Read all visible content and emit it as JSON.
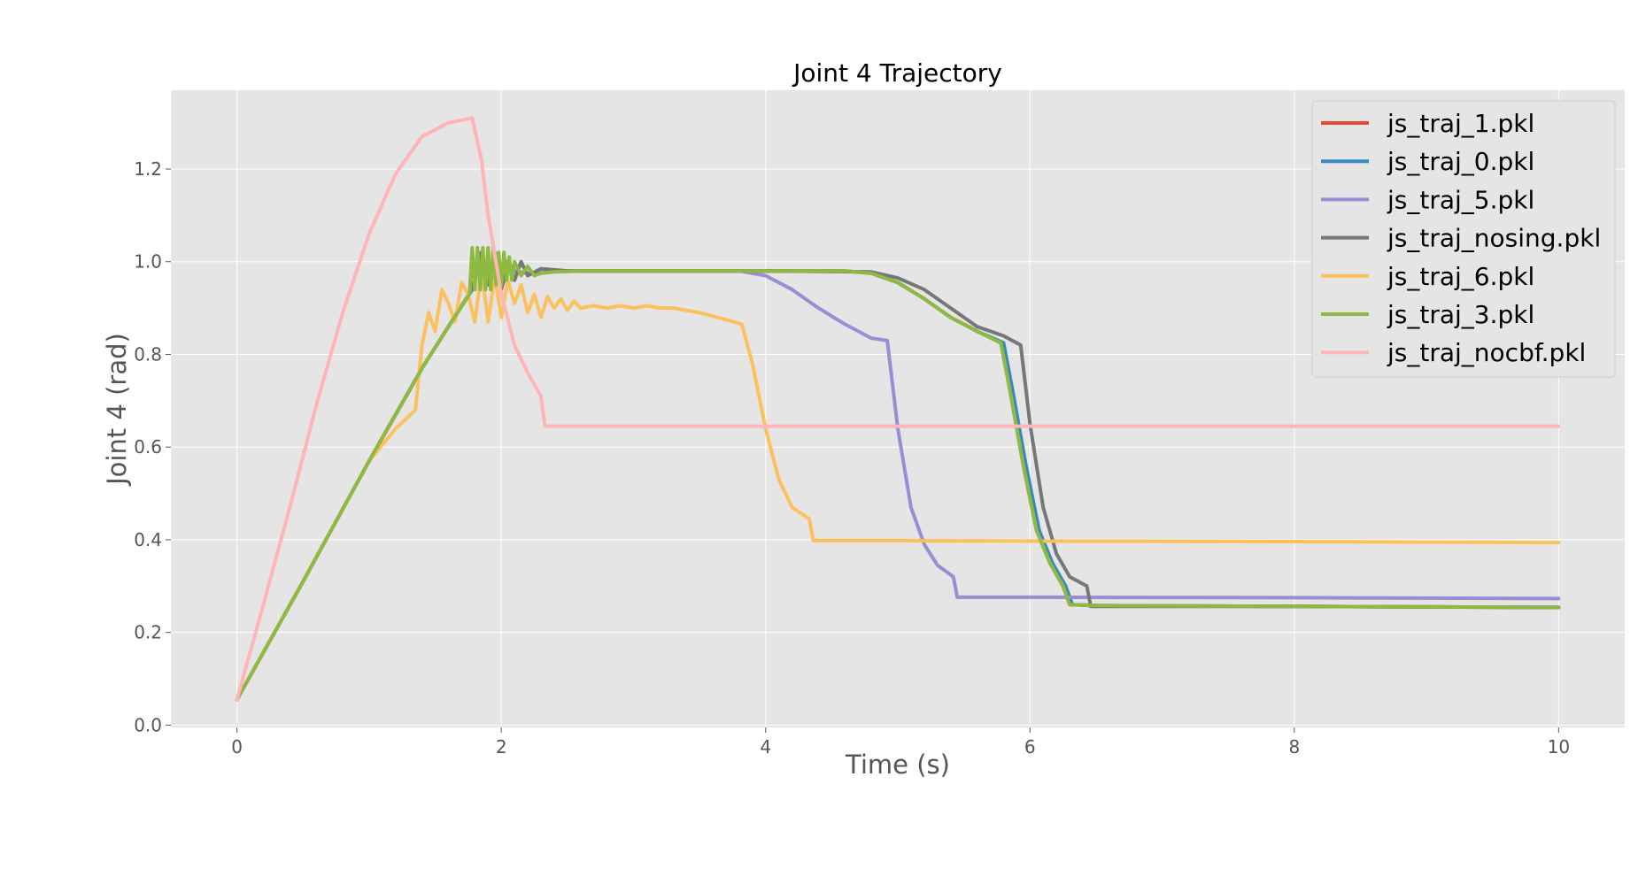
{
  "chart_data": {
    "type": "line",
    "title": "Joint 4 Trajectory",
    "xlabel": "Time (s)",
    "ylabel": "Joint 4 (rad)",
    "xlim": [
      -0.5,
      10.5
    ],
    "ylim": [
      -0.005,
      1.37
    ],
    "xticks": [
      0,
      2,
      4,
      6,
      8,
      10
    ],
    "xtick_labels": [
      "0",
      "2",
      "4",
      "6",
      "8",
      "10"
    ],
    "yticks": [
      0.0,
      0.2,
      0.4,
      0.6,
      0.8,
      1.0,
      1.2
    ],
    "ytick_labels": [
      "0.0",
      "0.2",
      "0.4",
      "0.6",
      "0.8",
      "1.0",
      "1.2"
    ],
    "grid": true,
    "legend_position": "top-right",
    "background": "#e5e5e5",
    "series": [
      {
        "name": "js_traj_1.pkl",
        "color": "#e24a33",
        "x": [
          0,
          0.5,
          1.0,
          1.2,
          1.4,
          1.6,
          1.78,
          1.85,
          1.9,
          1.95,
          2.0,
          2.05,
          2.1,
          2.2,
          2.4,
          3.0,
          4.0,
          4.6,
          4.8,
          5.0,
          5.2,
          5.4,
          5.6,
          5.78,
          5.85,
          5.95,
          6.05,
          6.15,
          6.25,
          6.3,
          6.5,
          8.0,
          10.0
        ],
        "y": [
          0.055,
          0.31,
          0.57,
          0.67,
          0.77,
          0.86,
          0.94,
          1.02,
          0.96,
          1.02,
          0.97,
          1.0,
          0.98,
          0.975,
          0.98,
          0.98,
          0.98,
          0.98,
          0.975,
          0.955,
          0.92,
          0.88,
          0.85,
          0.825,
          0.72,
          0.56,
          0.42,
          0.35,
          0.3,
          0.26,
          0.258,
          0.256,
          0.254
        ]
      },
      {
        "name": "js_traj_0.pkl",
        "color": "#348abd",
        "x": [
          0,
          0.5,
          1.0,
          1.2,
          1.4,
          1.6,
          1.78,
          1.85,
          1.9,
          1.95,
          2.0,
          2.05,
          2.1,
          2.2,
          2.4,
          3.0,
          4.0,
          4.6,
          4.8,
          5.0,
          5.2,
          5.4,
          5.6,
          5.8,
          5.87,
          5.97,
          6.07,
          6.17,
          6.27,
          6.32,
          6.5,
          8.0,
          10.0
        ],
        "y": [
          0.055,
          0.31,
          0.57,
          0.67,
          0.77,
          0.86,
          0.94,
          1.02,
          0.96,
          1.02,
          0.97,
          1.0,
          0.98,
          0.975,
          0.98,
          0.98,
          0.98,
          0.98,
          0.975,
          0.955,
          0.92,
          0.88,
          0.85,
          0.825,
          0.72,
          0.56,
          0.42,
          0.35,
          0.3,
          0.26,
          0.258,
          0.256,
          0.254
        ]
      },
      {
        "name": "js_traj_5.pkl",
        "color": "#988ed5",
        "x": [
          0,
          0.5,
          1.0,
          1.2,
          1.4,
          1.6,
          1.78,
          1.85,
          1.9,
          1.95,
          2.0,
          2.05,
          2.1,
          2.2,
          2.4,
          3.0,
          3.8,
          4.0,
          4.2,
          4.4,
          4.6,
          4.8,
          4.92,
          5.0,
          5.1,
          5.2,
          5.3,
          5.42,
          5.45,
          6.0,
          8.0,
          10.0
        ],
        "y": [
          0.055,
          0.31,
          0.57,
          0.67,
          0.77,
          0.86,
          0.94,
          1.02,
          0.96,
          1.02,
          0.97,
          1.0,
          0.98,
          0.975,
          0.98,
          0.98,
          0.98,
          0.97,
          0.94,
          0.9,
          0.865,
          0.835,
          0.83,
          0.64,
          0.47,
          0.39,
          0.345,
          0.32,
          0.276,
          0.276,
          0.275,
          0.273
        ]
      },
      {
        "name": "js_traj_nosing.pkl",
        "color": "#777777",
        "x": [
          0,
          0.5,
          1.0,
          1.2,
          1.4,
          1.6,
          1.78,
          1.85,
          1.9,
          1.95,
          2.0,
          2.05,
          2.1,
          2.15,
          2.2,
          2.3,
          2.5,
          3.0,
          4.0,
          4.8,
          5.0,
          5.2,
          5.4,
          5.6,
          5.8,
          5.93,
          6.0,
          6.1,
          6.2,
          6.3,
          6.43,
          6.46,
          7.0,
          8.0,
          10.0
        ],
        "y": [
          0.055,
          0.31,
          0.57,
          0.67,
          0.77,
          0.86,
          0.94,
          1.02,
          0.95,
          1.02,
          0.94,
          0.99,
          0.96,
          1.0,
          0.97,
          0.985,
          0.98,
          0.98,
          0.98,
          0.978,
          0.965,
          0.94,
          0.9,
          0.86,
          0.84,
          0.82,
          0.65,
          0.47,
          0.37,
          0.32,
          0.3,
          0.256,
          0.256,
          0.256,
          0.254
        ]
      },
      {
        "name": "js_traj_6.pkl",
        "color": "#fbc15e",
        "x": [
          0,
          0.5,
          1.0,
          1.2,
          1.35,
          1.4,
          1.45,
          1.5,
          1.55,
          1.6,
          1.65,
          1.7,
          1.75,
          1.8,
          1.85,
          1.9,
          1.95,
          2.0,
          2.05,
          2.1,
          2.15,
          2.2,
          2.25,
          2.3,
          2.35,
          2.4,
          2.45,
          2.5,
          2.55,
          2.6,
          2.7,
          2.8,
          2.9,
          3.0,
          3.1,
          3.2,
          3.3,
          3.5,
          3.7,
          3.82,
          3.9,
          4.0,
          4.1,
          4.2,
          4.33,
          4.36,
          5.0,
          6.0,
          8.0,
          10.0
        ],
        "y": [
          0.055,
          0.31,
          0.57,
          0.64,
          0.68,
          0.82,
          0.89,
          0.85,
          0.94,
          0.91,
          0.87,
          0.955,
          0.93,
          0.87,
          0.98,
          0.87,
          0.97,
          0.88,
          0.96,
          0.91,
          0.95,
          0.89,
          0.93,
          0.88,
          0.925,
          0.9,
          0.92,
          0.895,
          0.915,
          0.9,
          0.905,
          0.9,
          0.905,
          0.9,
          0.905,
          0.9,
          0.9,
          0.89,
          0.875,
          0.865,
          0.78,
          0.64,
          0.53,
          0.47,
          0.445,
          0.398,
          0.398,
          0.397,
          0.396,
          0.394
        ]
      },
      {
        "name": "js_traj_3.pkl",
        "color": "#8eba42",
        "x": [
          0,
          0.5,
          1.0,
          1.2,
          1.4,
          1.6,
          1.76,
          1.78,
          1.8,
          1.82,
          1.84,
          1.86,
          1.88,
          1.9,
          1.92,
          1.94,
          1.96,
          1.98,
          2.0,
          2.02,
          2.04,
          2.06,
          2.08,
          2.1,
          2.15,
          2.2,
          2.25,
          2.3,
          2.4,
          2.6,
          3.0,
          4.0,
          4.6,
          4.8,
          5.0,
          5.2,
          5.4,
          5.6,
          5.78,
          5.85,
          5.95,
          6.05,
          6.15,
          6.25,
          6.3,
          6.5,
          8.0,
          10.0
        ],
        "y": [
          0.055,
          0.31,
          0.57,
          0.67,
          0.77,
          0.86,
          0.93,
          1.03,
          0.94,
          1.03,
          0.94,
          1.03,
          0.94,
          1.03,
          0.94,
          1.03,
          0.95,
          1.02,
          0.95,
          1.02,
          0.96,
          1.01,
          0.96,
          1.0,
          0.97,
          0.99,
          0.97,
          0.975,
          0.978,
          0.98,
          0.98,
          0.98,
          0.98,
          0.975,
          0.955,
          0.92,
          0.88,
          0.85,
          0.825,
          0.72,
          0.56,
          0.42,
          0.35,
          0.3,
          0.26,
          0.258,
          0.256,
          0.254
        ]
      },
      {
        "name": "js_traj_nocbf.pkl",
        "color": "#ffb5b8",
        "x": [
          0,
          0.2,
          0.4,
          0.6,
          0.8,
          1.0,
          1.2,
          1.4,
          1.6,
          1.78,
          1.85,
          1.9,
          2.0,
          2.1,
          2.2,
          2.3,
          2.33,
          3.0,
          4.0,
          6.0,
          8.0,
          10.0
        ],
        "y": [
          0.055,
          0.26,
          0.47,
          0.69,
          0.89,
          1.06,
          1.19,
          1.27,
          1.3,
          1.31,
          1.22,
          1.1,
          0.93,
          0.82,
          0.76,
          0.71,
          0.645,
          0.645,
          0.645,
          0.645,
          0.645,
          0.645
        ]
      }
    ]
  }
}
